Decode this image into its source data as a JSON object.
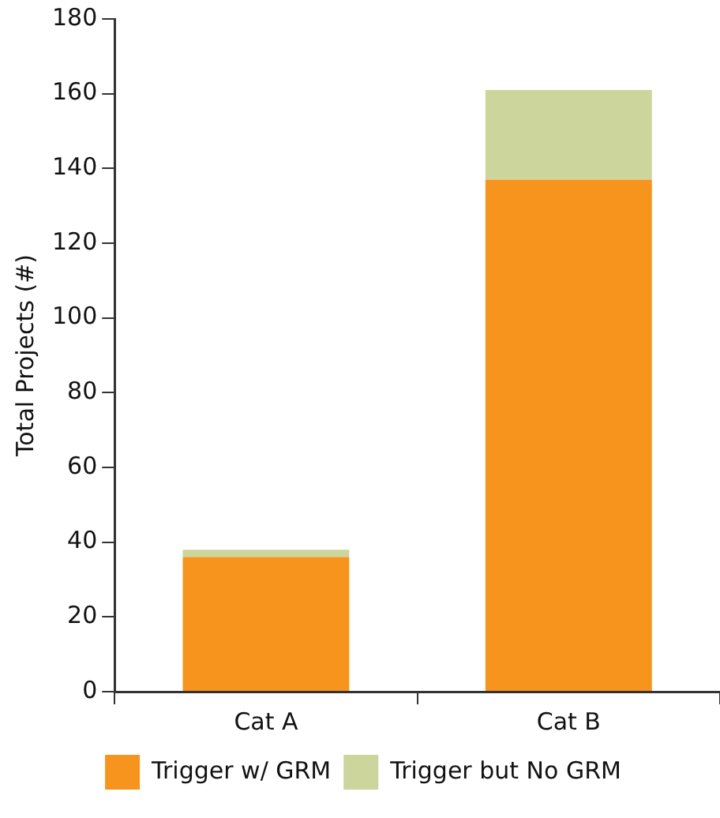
{
  "chart_data": {
    "type": "bar",
    "ylabel": "Total Projects (#)",
    "categories": [
      "Cat A",
      "Cat B"
    ],
    "series": [
      {
        "name": "Trigger w/ GRM",
        "color": "#f7941d",
        "values": [
          36,
          137
        ]
      },
      {
        "name": "Trigger but No GRM",
        "color": "#cbd59c",
        "values": [
          2,
          24
        ]
      }
    ],
    "stacked": true,
    "ylim": [
      0,
      180
    ],
    "yticks": [
      0,
      20,
      40,
      60,
      80,
      100,
      120,
      140,
      160,
      180
    ],
    "grid": false,
    "legend": "bottom"
  }
}
